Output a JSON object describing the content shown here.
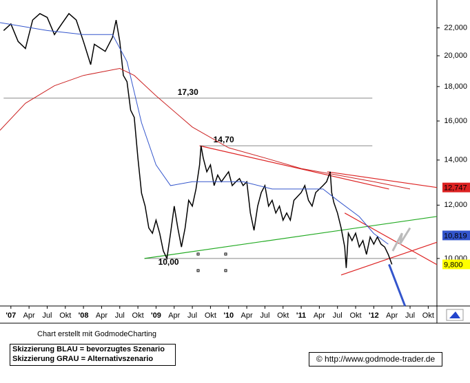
{
  "chart_data": {
    "type": "line",
    "log_scale": true,
    "xlim": [
      2006.85,
      2012.87
    ],
    "ylim": [
      8500,
      24200
    ],
    "xticks": [
      {
        "value": 2007,
        "label": "'07"
      },
      {
        "value": 2007.25,
        "label": "Apr"
      },
      {
        "value": 2007.5,
        "label": "Jul"
      },
      {
        "value": 2007.75,
        "label": "Okt"
      },
      {
        "value": 2008,
        "label": "'08"
      },
      {
        "value": 2008.25,
        "label": "Apr"
      },
      {
        "value": 2008.5,
        "label": "Jul"
      },
      {
        "value": 2008.75,
        "label": "Okt"
      },
      {
        "value": 2009,
        "label": "'09"
      },
      {
        "value": 2009.25,
        "label": "Apr"
      },
      {
        "value": 2009.5,
        "label": "Jul"
      },
      {
        "value": 2009.75,
        "label": "Okt"
      },
      {
        "value": 2010,
        "label": "'10"
      },
      {
        "value": 2010.25,
        "label": "Apr"
      },
      {
        "value": 2010.5,
        "label": "Jul"
      },
      {
        "value": 2010.75,
        "label": "Okt"
      },
      {
        "value": 2011,
        "label": "'11"
      },
      {
        "value": 2011.25,
        "label": "Apr"
      },
      {
        "value": 2011.5,
        "label": "Jul"
      },
      {
        "value": 2011.75,
        "label": "Okt"
      },
      {
        "value": 2012,
        "label": "'12"
      },
      {
        "value": 2012.25,
        "label": "Apr"
      },
      {
        "value": 2012.5,
        "label": "Jul"
      },
      {
        "value": 2012.75,
        "label": "Okt"
      }
    ],
    "yticks": [
      {
        "value": 10000,
        "label": "10,000"
      },
      {
        "value": 12000,
        "label": "12,000"
      },
      {
        "value": 14000,
        "label": "14,000"
      },
      {
        "value": 16000,
        "label": "16,000"
      },
      {
        "value": 18000,
        "label": "18,000"
      },
      {
        "value": 20000,
        "label": "20,000"
      },
      {
        "value": 22000,
        "label": "22,000"
      }
    ],
    "series": [
      {
        "color": "#000000",
        "x": [
          2006.9,
          2007.0,
          2007.1,
          2007.2,
          2007.3,
          2007.4,
          2007.5,
          2007.6,
          2007.7,
          2007.8,
          2007.9,
          2008.0,
          2008.1,
          2008.15,
          2008.3,
          2008.4,
          2008.45,
          2008.5,
          2008.55,
          2008.6,
          2008.65,
          2008.7,
          2008.75,
          2008.8,
          2008.85,
          2008.9,
          2008.95,
          2009.0,
          2009.05,
          2009.1,
          2009.15,
          2009.2,
          2009.25,
          2009.3,
          2009.35,
          2009.4,
          2009.45,
          2009.5,
          2009.55,
          2009.6,
          2009.62,
          2009.65,
          2009.7,
          2009.75,
          2009.8,
          2009.85,
          2009.9,
          2010.0,
          2010.05,
          2010.1,
          2010.15,
          2010.2,
          2010.25,
          2010.3,
          2010.35,
          2010.4,
          2010.45,
          2010.5,
          2010.55,
          2010.6,
          2010.65,
          2010.7,
          2010.75,
          2010.8,
          2010.85,
          2010.9,
          2011.0,
          2011.05,
          2011.1,
          2011.15,
          2011.2,
          2011.3,
          2011.35,
          2011.4,
          2011.42,
          2011.45,
          2011.5,
          2011.55,
          2011.6,
          2011.62,
          2011.65,
          2011.7,
          2011.75,
          2011.8,
          2011.85,
          2011.9,
          2011.95,
          2012.0,
          2012.05,
          2012.1,
          2012.15,
          2012.2,
          2012.25
        ],
        "values": [
          21800,
          22300,
          21000,
          20500,
          22600,
          23100,
          22800,
          21500,
          22300,
          23100,
          22600,
          21000,
          19400,
          20800,
          20300,
          21300,
          22600,
          21000,
          18700,
          18300,
          16600,
          16200,
          14100,
          12500,
          11960,
          11100,
          10900,
          11400,
          10900,
          10260,
          10000,
          10900,
          11960,
          11100,
          10400,
          11100,
          12200,
          11960,
          12680,
          13770,
          14700,
          14100,
          13450,
          13770,
          12830,
          13300,
          13000,
          13450,
          12830,
          13000,
          13140,
          12830,
          13000,
          11680,
          11010,
          11960,
          12530,
          12830,
          11960,
          12200,
          11680,
          11960,
          11400,
          11680,
          11400,
          12200,
          12530,
          12830,
          12200,
          11960,
          12530,
          12830,
          13000,
          13450,
          12530,
          12100,
          11680,
          11100,
          10400,
          9680,
          10900,
          10630,
          10900,
          10400,
          10630,
          10140,
          10760,
          10500,
          10760,
          10500,
          10400,
          10140,
          9800
        ]
      },
      {
        "color": "#3355cc",
        "x": [
          2006.85,
          2007.5,
          2008.0,
          2008.4,
          2008.6,
          2008.8,
          2009.0,
          2009.2,
          2009.5,
          2009.8,
          2010.2,
          2010.6,
          2011.0,
          2011.3,
          2011.5,
          2011.8,
          2012.0,
          2012.2
        ],
        "values": [
          22400,
          21800,
          21500,
          21500,
          19600,
          15900,
          13770,
          12830,
          13000,
          13000,
          13000,
          12680,
          12680,
          12680,
          12200,
          11540,
          10890,
          10500
        ]
      },
      {
        "color": "#cc2222",
        "x": [
          2006.85,
          2007.2,
          2007.6,
          2008.0,
          2008.5,
          2008.7,
          2009.0,
          2009.5,
          2010.0,
          2010.5,
          2011.0,
          2011.5,
          2012.0,
          2012.5
        ],
        "values": [
          15500,
          17000,
          18050,
          18700,
          19150,
          18700,
          17440,
          15670,
          14600,
          14100,
          13600,
          13300,
          13000,
          12680
        ]
      }
    ],
    "trendlines": [
      {
        "color": "#dd2222",
        "x": [
          2009.6,
          2012.21
        ],
        "values": [
          14700,
          12680
        ]
      },
      {
        "color": "#dd2222",
        "x": [
          2011.36,
          2012.87
        ],
        "values": [
          13450,
          12747
        ]
      },
      {
        "color": "#22aa22",
        "x": [
          2008.84,
          2012.87
        ],
        "values": [
          10000,
          11545
        ]
      },
      {
        "color": "#dd2222",
        "x": [
          2011.55,
          2012.87
        ],
        "values": [
          9450,
          10570
        ]
      },
      {
        "color": "#dd2222",
        "x": [
          2011.6,
          2012.87
        ],
        "values": [
          11680,
          9790
        ]
      },
      {
        "color": "#3355cc",
        "x": [
          2012.21,
          2012.43
        ],
        "values": [
          9800,
          8500
        ]
      },
      {
        "color": "#bbbbbb",
        "x": [
          2012.26,
          2012.39,
          2012.36,
          2012.5
        ],
        "values": [
          10260,
          10900,
          10500,
          11100
        ]
      }
    ],
    "levels": [
      {
        "value": 17300,
        "label": "17,30",
        "x": [
          2006.9,
          2011.98
        ]
      },
      {
        "value": 14700,
        "label": "14,70",
        "x": [
          2009.6,
          2011.98
        ]
      },
      {
        "value": 10000,
        "label": "10,00",
        "x": [
          2008.84,
          2012.59
        ]
      }
    ],
    "price_tags": [
      {
        "value": 12747,
        "label": "12,747",
        "color": "#dd2222"
      },
      {
        "value": 10819,
        "label": "10,819",
        "color": "#3355cc"
      },
      {
        "value": 9800,
        "label": "9,800",
        "color": "#ffff00"
      }
    ]
  },
  "credit": "Chart erstellt mit GodmodeCharting",
  "legend_notes": [
    "Skizzierung BLAU = bevorzugtes Szenario",
    "Skizzierung GRAU = Alternativszenario"
  ],
  "copyright": "© http://www.godmode-trader.de"
}
